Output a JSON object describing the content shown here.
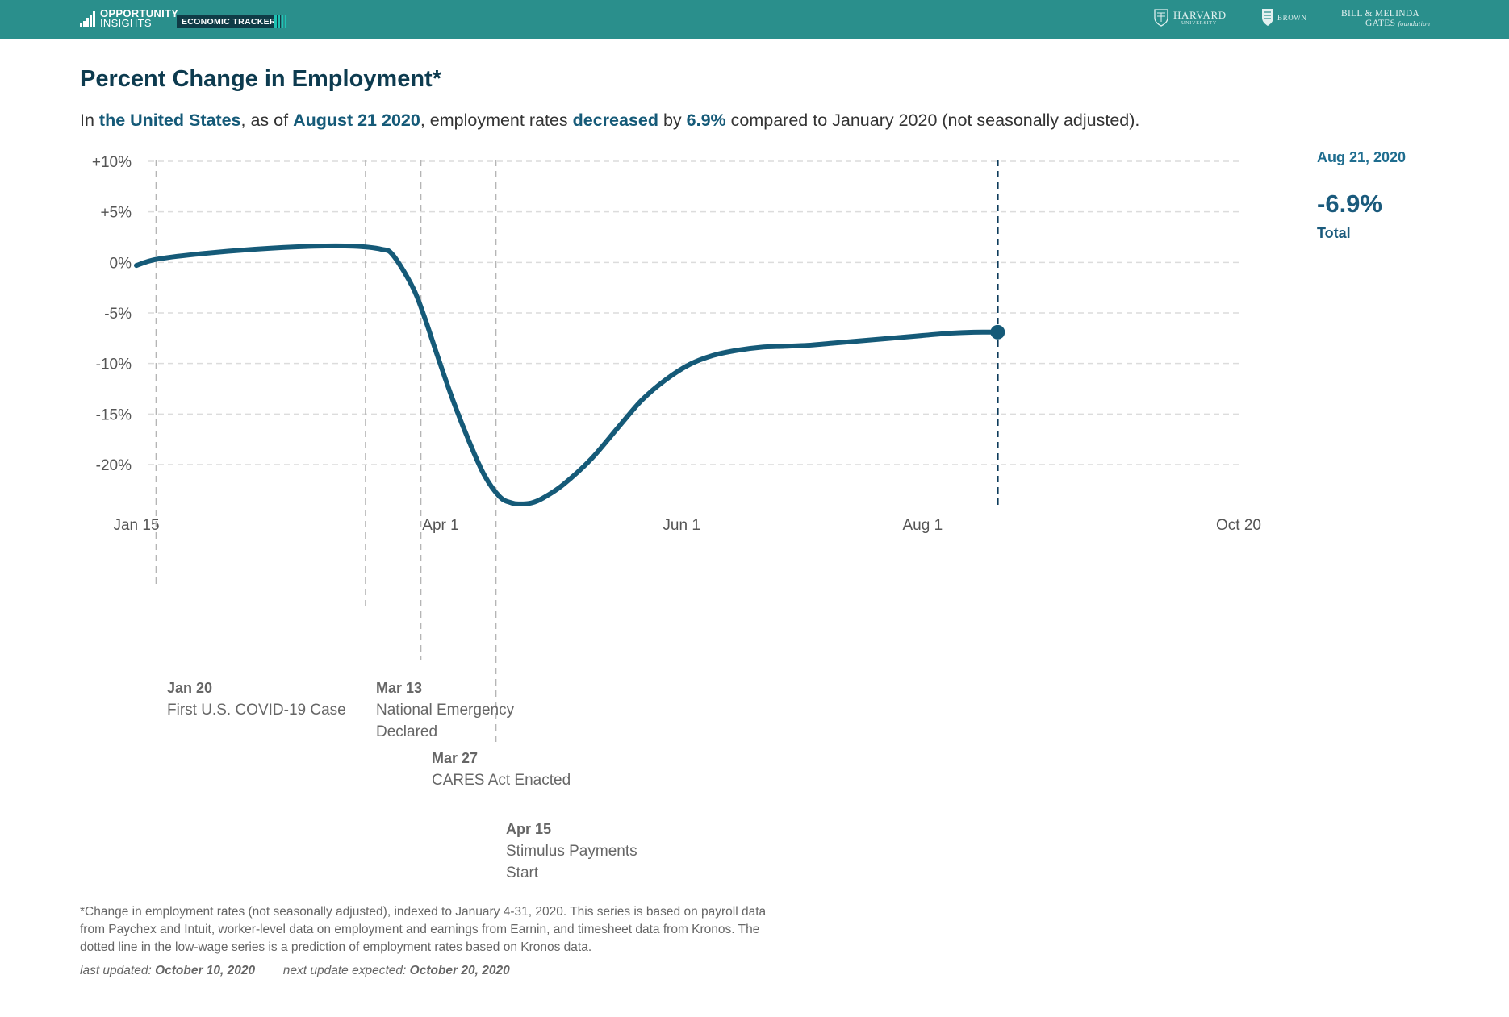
{
  "header": {
    "logo_line1": "OPPORTUNITY",
    "logo_line2": "INSIGHTS",
    "tracker_label": "ECONOMIC TRACKER",
    "partners": {
      "harvard_name": "HARVARD",
      "harvard_sub": "UNIVERSITY",
      "brown_name": "BROWN",
      "gates_line1": "BILL & MELINDA",
      "gates_line2": "GATES",
      "gates_line2_suffix": "foundation"
    }
  },
  "title": "Percent Change in Employment*",
  "subtitle": {
    "p1": "In ",
    "location": "the United States",
    "p2": ", as of ",
    "date": "August 21 2020",
    "p3": ", employment rates ",
    "direction": "decreased",
    "p4": " by ",
    "amount": "6.9%",
    "p5": " compared to January 2020 (not seasonally adjusted)."
  },
  "sidebar": {
    "date": "Aug 21, 2020",
    "value": "-6.9%",
    "label": "Total"
  },
  "chart_data": {
    "type": "line",
    "title": "Percent Change in Employment*",
    "xlabel": "",
    "ylabel": "",
    "y_ticks": [
      "+10%",
      "+5%",
      "0%",
      "-5%",
      "-10%",
      "-15%",
      "-20%"
    ],
    "y_tick_values": [
      10,
      5,
      0,
      -5,
      -10,
      -15,
      -20
    ],
    "ylim": [
      -25,
      10
    ],
    "x_ticks": [
      "Jan 15",
      "Apr 1",
      "Jun 1",
      "Aug 1",
      "Oct 20"
    ],
    "x_tick_values": [
      0,
      77,
      138,
      199,
      279
    ],
    "xlim": [
      0,
      279
    ],
    "grid": true,
    "series": [
      {
        "name": "Total",
        "color": "#155a78",
        "x": [
          0,
          5,
          15,
          30,
          45,
          55,
          62,
          65,
          70,
          73,
          76,
          80,
          84,
          88,
          92,
          95,
          97,
          100,
          103,
          108,
          115,
          122,
          128,
          134,
          140,
          146,
          152,
          158,
          164,
          170,
          176,
          182,
          188,
          194,
          200,
          206,
          212,
          218
        ],
        "values": [
          -0.3,
          0.3,
          0.8,
          1.3,
          1.6,
          1.6,
          1.3,
          0.7,
          -2.5,
          -5.5,
          -9,
          -13.5,
          -17.5,
          -21,
          -23.2,
          -23.8,
          -23.9,
          -23.8,
          -23.3,
          -22,
          -19.5,
          -16.3,
          -13.6,
          -11.6,
          -10.1,
          -9.2,
          -8.7,
          -8.4,
          -8.3,
          -8.2,
          -8.0,
          -7.8,
          -7.6,
          -7.4,
          -7.2,
          -7.0,
          -6.9,
          -6.9
        ]
      }
    ],
    "highlight_point": {
      "x": 218,
      "value": -6.9,
      "label": "Aug 21, 2020"
    },
    "events": [
      {
        "x": 5,
        "date": "Jan 20",
        "text": "First U.S. COVID-19 Case"
      },
      {
        "x": 58,
        "date": "Mar 13",
        "text": "National Emergency Declared"
      },
      {
        "x": 72,
        "date": "Mar 27",
        "text": "CARES Act Enacted"
      },
      {
        "x": 91,
        "date": "Apr 15",
        "text": "Stimulus Payments Start"
      }
    ]
  },
  "footer": {
    "note": "*Change in employment rates (not seasonally adjusted), indexed to January 4-31, 2020. This series is based on payroll data from Paychex and Intuit, worker-level data on employment and earnings from Earnin, and timesheet data from Kronos. The dotted line in the low-wage series is a prediction of employment rates based on Kronos data.",
    "last_updated_label": "last updated:",
    "last_updated_value": "October 10, 2020",
    "next_update_label": "next update expected:",
    "next_update_value": "October 20, 2020"
  }
}
